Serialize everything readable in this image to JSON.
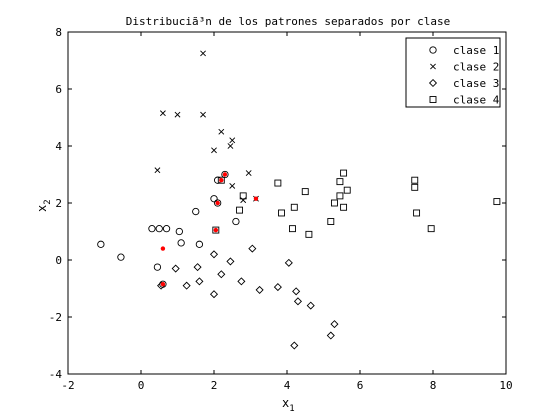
{
  "chart_data": {
    "type": "scatter",
    "title": "Distribuciã³n de los patrones separados por clase",
    "xlabel": {
      "base": "x",
      "sub": "1"
    },
    "ylabel": {
      "base": "x",
      "sub": "2"
    },
    "xlim": [
      -2,
      10
    ],
    "ylim": [
      -4,
      8
    ],
    "xticks": [
      -2,
      0,
      2,
      4,
      6,
      8,
      10
    ],
    "yticks": [
      -4,
      -2,
      0,
      2,
      4,
      6,
      8
    ],
    "grid": false,
    "legend_position": "top-right",
    "colors": {
      "series": "#000000",
      "highlight": "#ff0000",
      "axes": "#000000"
    },
    "series": [
      {
        "name": "clase 1",
        "marker": "circle",
        "points": [
          [
            -1.1,
            0.55
          ],
          [
            -0.55,
            0.1
          ],
          [
            0.45,
            -0.25
          ],
          [
            0.6,
            -0.85
          ],
          [
            0.3,
            1.1
          ],
          [
            0.5,
            1.1
          ],
          [
            0.7,
            1.1
          ],
          [
            1.05,
            1.0
          ],
          [
            1.1,
            0.6
          ],
          [
            1.6,
            0.55
          ],
          [
            1.5,
            1.7
          ],
          [
            2.0,
            2.15
          ],
          [
            2.1,
            2.0
          ],
          [
            2.3,
            3.0
          ],
          [
            2.1,
            2.8
          ],
          [
            2.6,
            1.35
          ]
        ]
      },
      {
        "name": "clase 2",
        "marker": "x",
        "points": [
          [
            0.45,
            3.15
          ],
          [
            0.6,
            5.15
          ],
          [
            1.0,
            5.1
          ],
          [
            1.7,
            5.1
          ],
          [
            1.7,
            7.25
          ],
          [
            2.0,
            3.85
          ],
          [
            2.2,
            4.5
          ],
          [
            2.45,
            4.0
          ],
          [
            2.5,
            4.2
          ],
          [
            2.5,
            2.6
          ],
          [
            2.8,
            2.1
          ],
          [
            2.95,
            3.05
          ],
          [
            3.15,
            2.15
          ]
        ]
      },
      {
        "name": "clase 3",
        "marker": "diamond",
        "points": [
          [
            0.55,
            -0.9
          ],
          [
            0.95,
            -0.3
          ],
          [
            1.25,
            -0.9
          ],
          [
            1.55,
            -0.25
          ],
          [
            1.6,
            -0.75
          ],
          [
            2.0,
            0.2
          ],
          [
            2.0,
            -1.2
          ],
          [
            2.2,
            -0.5
          ],
          [
            2.45,
            -0.05
          ],
          [
            2.75,
            -0.75
          ],
          [
            3.05,
            0.4
          ],
          [
            3.25,
            -1.05
          ],
          [
            3.75,
            -0.95
          ],
          [
            4.05,
            -0.1
          ],
          [
            4.25,
            -1.1
          ],
          [
            4.3,
            -1.45
          ],
          [
            4.65,
            -1.6
          ],
          [
            4.2,
            -3.0
          ],
          [
            5.2,
            -2.65
          ],
          [
            5.3,
            -2.25
          ]
        ]
      },
      {
        "name": "clase 4",
        "marker": "square",
        "points": [
          [
            2.05,
            1.05
          ],
          [
            2.2,
            2.8
          ],
          [
            2.7,
            1.75
          ],
          [
            2.8,
            2.25
          ],
          [
            3.75,
            2.7
          ],
          [
            3.85,
            1.65
          ],
          [
            4.15,
            1.1
          ],
          [
            4.2,
            1.85
          ],
          [
            4.5,
            2.4
          ],
          [
            4.6,
            0.9
          ],
          [
            5.2,
            1.35
          ],
          [
            5.3,
            2.0
          ],
          [
            5.45,
            2.25
          ],
          [
            5.45,
            2.75
          ],
          [
            5.55,
            1.85
          ],
          [
            5.55,
            3.05
          ],
          [
            5.65,
            2.45
          ],
          [
            7.5,
            2.55
          ],
          [
            7.5,
            2.8
          ],
          [
            7.55,
            1.65
          ],
          [
            7.95,
            1.1
          ],
          [
            9.75,
            2.05
          ]
        ]
      }
    ],
    "highlighted_points": [
      [
        0.6,
        0.4
      ],
      [
        0.6,
        -0.85
      ],
      [
        2.05,
        1.05
      ],
      [
        2.1,
        2.0
      ],
      [
        2.2,
        2.8
      ],
      [
        2.3,
        3.0
      ],
      [
        3.15,
        2.15
      ]
    ]
  }
}
